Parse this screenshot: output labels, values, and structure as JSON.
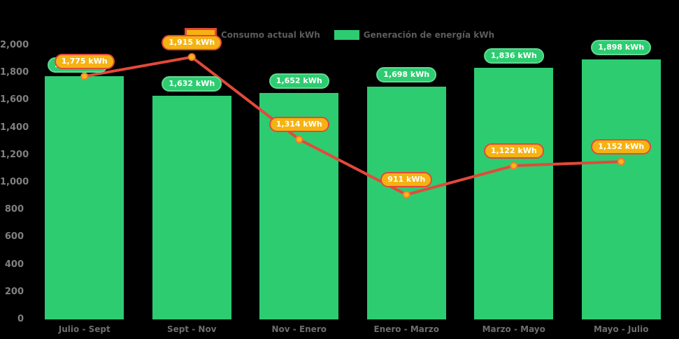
{
  "colors": {
    "background": "#000000",
    "bar": "#2ecc71",
    "line": "#e3493a",
    "marker_fill": "#fdb515",
    "marker_stroke": "#ed7d31",
    "pill_consumo_bg": "#f5b312",
    "pill_consumo_border": "#e3493a",
    "pill_generacion_bg": "#2ecc71",
    "pill_generacion_border": "#62da94",
    "axis_text": "#808080",
    "legend_text": "#5c5c5c"
  },
  "legend": {
    "items": [
      {
        "label": "Consumo actual kWh",
        "swatch": "consumo"
      },
      {
        "label": "Generación de energía kWh",
        "swatch": "generacion"
      }
    ]
  },
  "chart_data": {
    "type": "bar",
    "subtype": "bar-and-line-combo",
    "categories": [
      "Julio - Sept",
      "Sept - Nov",
      "Nov - Enero",
      "Enero - Marzo",
      "Marzo - Mayo",
      "Mayo - Julio"
    ],
    "series": [
      {
        "name": "Generación de energía kWh",
        "type": "bar",
        "color": "#2ecc71",
        "values": [
          1775,
          1632,
          1652,
          1698,
          1836,
          1898
        ],
        "labels": [
          "1,775 kWh",
          "1,632 kWh",
          "1,652 kWh",
          "1,698 kWh",
          "1,836 kWh",
          "1,898 kWh"
        ]
      },
      {
        "name": "Consumo actual kWh",
        "type": "line",
        "color": "#e3493a",
        "values": [
          1775,
          1915,
          1314,
          911,
          1122,
          1152
        ],
        "labels": [
          "1,775 kWh",
          "1,915 kWh",
          "1,314 kWh",
          "911 kWh",
          "1,122 kWh",
          "1,152 kWh"
        ]
      }
    ],
    "xlabel": "",
    "ylabel": "",
    "title": "",
    "ylim": [
      0,
      2000
    ],
    "ytick_step": 200,
    "yticks": [
      "0",
      "200",
      "400",
      "600",
      "800",
      "1,000",
      "1,200",
      "1,400",
      "1,600",
      "1,800",
      "2,000"
    ],
    "legend_position": "top-center",
    "grid": false
  }
}
